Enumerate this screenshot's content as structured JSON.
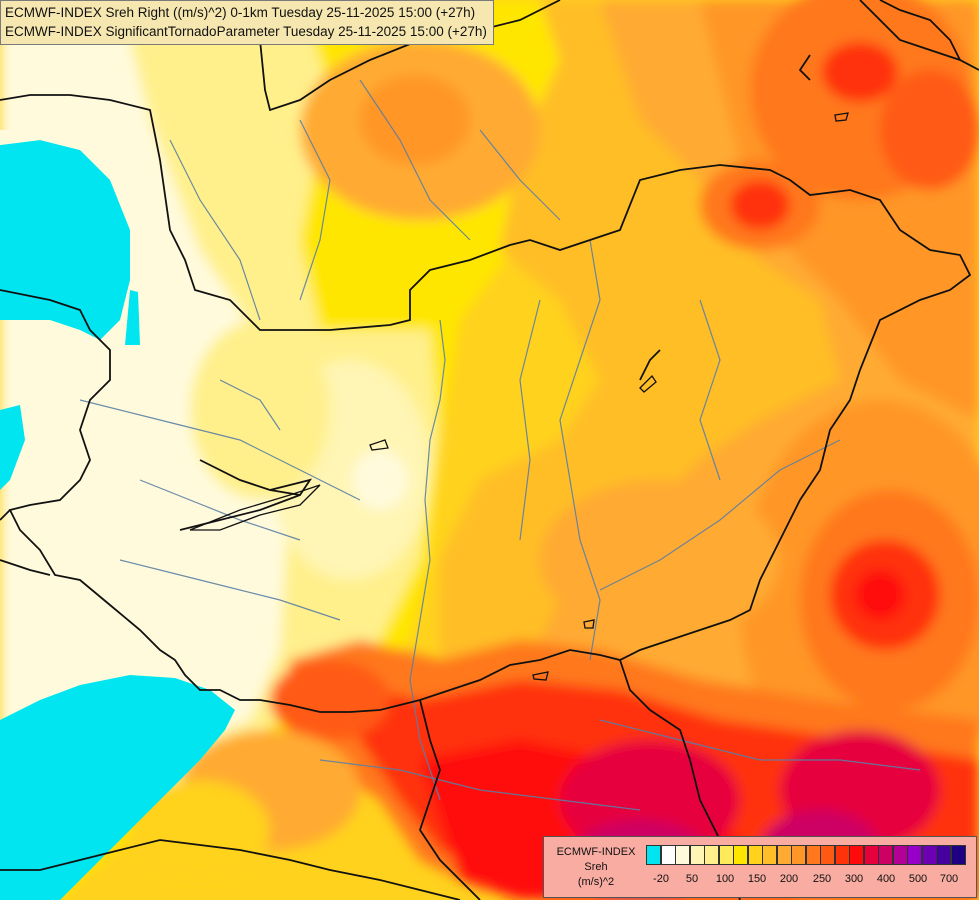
{
  "title": {
    "line1": "ECMWF-INDEX Sreh Right ((m/s)^2) 0-1km Tuesday 25-11-2025 15:00 (+27h)",
    "line2": "ECMWF-INDEX SignificantTornadoParameter Tuesday 25-11-2025 15:00 (+27h)"
  },
  "legend": {
    "line1": "ECMWF-INDEX",
    "line2": "Sreh",
    "line3": "(m/s)^2",
    "colors": [
      "#00e5ef",
      "#ffffff",
      "#fffadc",
      "#fff5b4",
      "#fff08c",
      "#ffeb5a",
      "#ffe600",
      "#ffd21e",
      "#ffbe28",
      "#ffaa32",
      "#ff9628",
      "#ff781e",
      "#ff5a14",
      "#ff320a",
      "#ff0a0a",
      "#e6003c",
      "#cd0064",
      "#b40096",
      "#9600c8",
      "#6e00b4",
      "#4600a0",
      "#1e0082"
    ],
    "ticks": [
      "-20",
      "50",
      "100",
      "150",
      "200",
      "250",
      "300",
      "400",
      "500",
      "700"
    ]
  }
}
